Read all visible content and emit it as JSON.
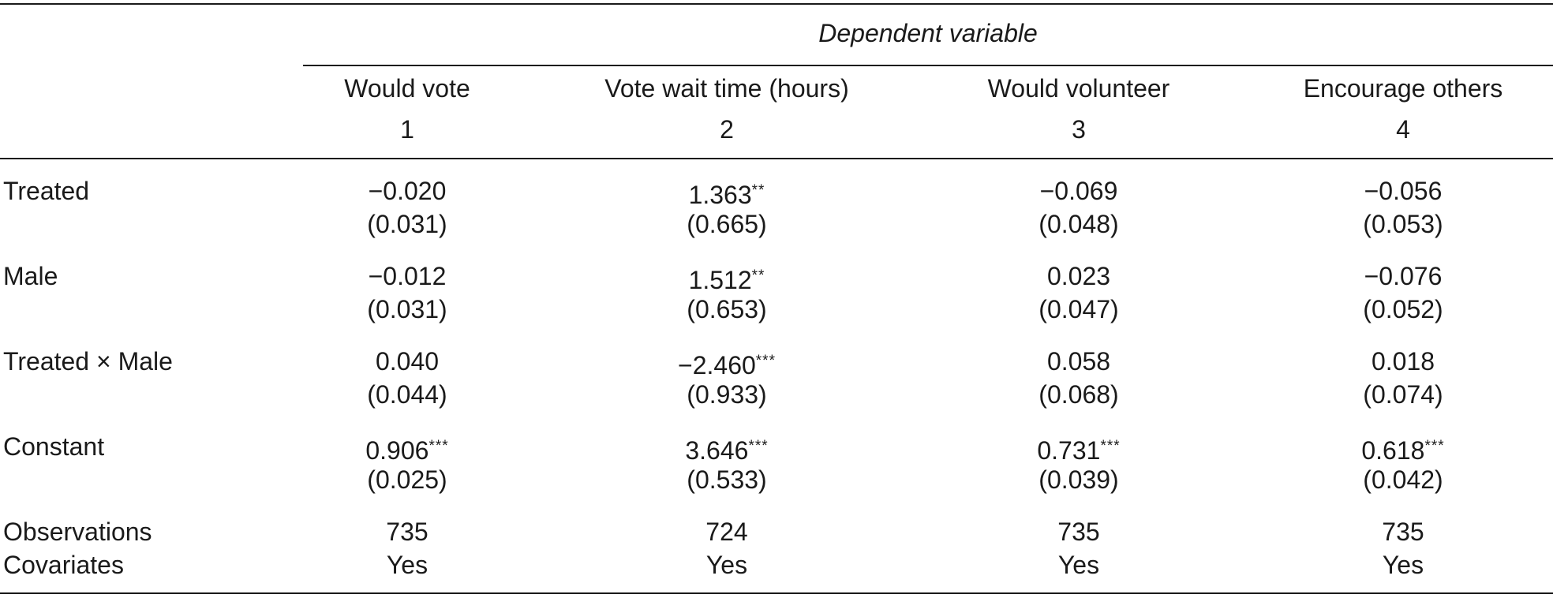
{
  "header": {
    "dependent_variable_label": "Dependent variable",
    "columns": [
      {
        "name": "Would vote",
        "number": "1"
      },
      {
        "name": "Vote wait time (hours)",
        "number": "2"
      },
      {
        "name": "Would volunteer",
        "number": "3"
      },
      {
        "name": "Encourage others",
        "number": "4"
      }
    ]
  },
  "rows": [
    {
      "label": "Treated",
      "cells": [
        {
          "coef": "−0.020",
          "stars": "",
          "se": "(0.031)"
        },
        {
          "coef": "1.363",
          "stars": "**",
          "se": "(0.665)"
        },
        {
          "coef": "−0.069",
          "stars": "",
          "se": "(0.048)"
        },
        {
          "coef": "−0.056",
          "stars": "",
          "se": "(0.053)"
        }
      ]
    },
    {
      "label": "Male",
      "cells": [
        {
          "coef": "−0.012",
          "stars": "",
          "se": "(0.031)"
        },
        {
          "coef": "1.512",
          "stars": "**",
          "se": "(0.653)"
        },
        {
          "coef": "0.023",
          "stars": "",
          "se": "(0.047)"
        },
        {
          "coef": "−0.076",
          "stars": "",
          "se": "(0.052)"
        }
      ]
    },
    {
      "label": "Treated × Male",
      "cells": [
        {
          "coef": "0.040",
          "stars": "",
          "se": "(0.044)"
        },
        {
          "coef": "−2.460",
          "stars": "***",
          "se": "(0.933)"
        },
        {
          "coef": "0.058",
          "stars": "",
          "se": "(0.068)"
        },
        {
          "coef": "0.018",
          "stars": "",
          "se": "(0.074)"
        }
      ]
    },
    {
      "label": "Constant",
      "cells": [
        {
          "coef": "0.906",
          "stars": "***",
          "se": "(0.025)"
        },
        {
          "coef": "3.646",
          "stars": "***",
          "se": "(0.533)"
        },
        {
          "coef": "0.731",
          "stars": "***",
          "se": "(0.039)"
        },
        {
          "coef": "0.618",
          "stars": "***",
          "se": "(0.042)"
        }
      ]
    }
  ],
  "footer": {
    "observations_label": "Observations",
    "observations": [
      "735",
      "724",
      "735",
      "735"
    ],
    "covariates_label": "Covariates",
    "covariates": [
      "Yes",
      "Yes",
      "Yes",
      "Yes"
    ]
  }
}
